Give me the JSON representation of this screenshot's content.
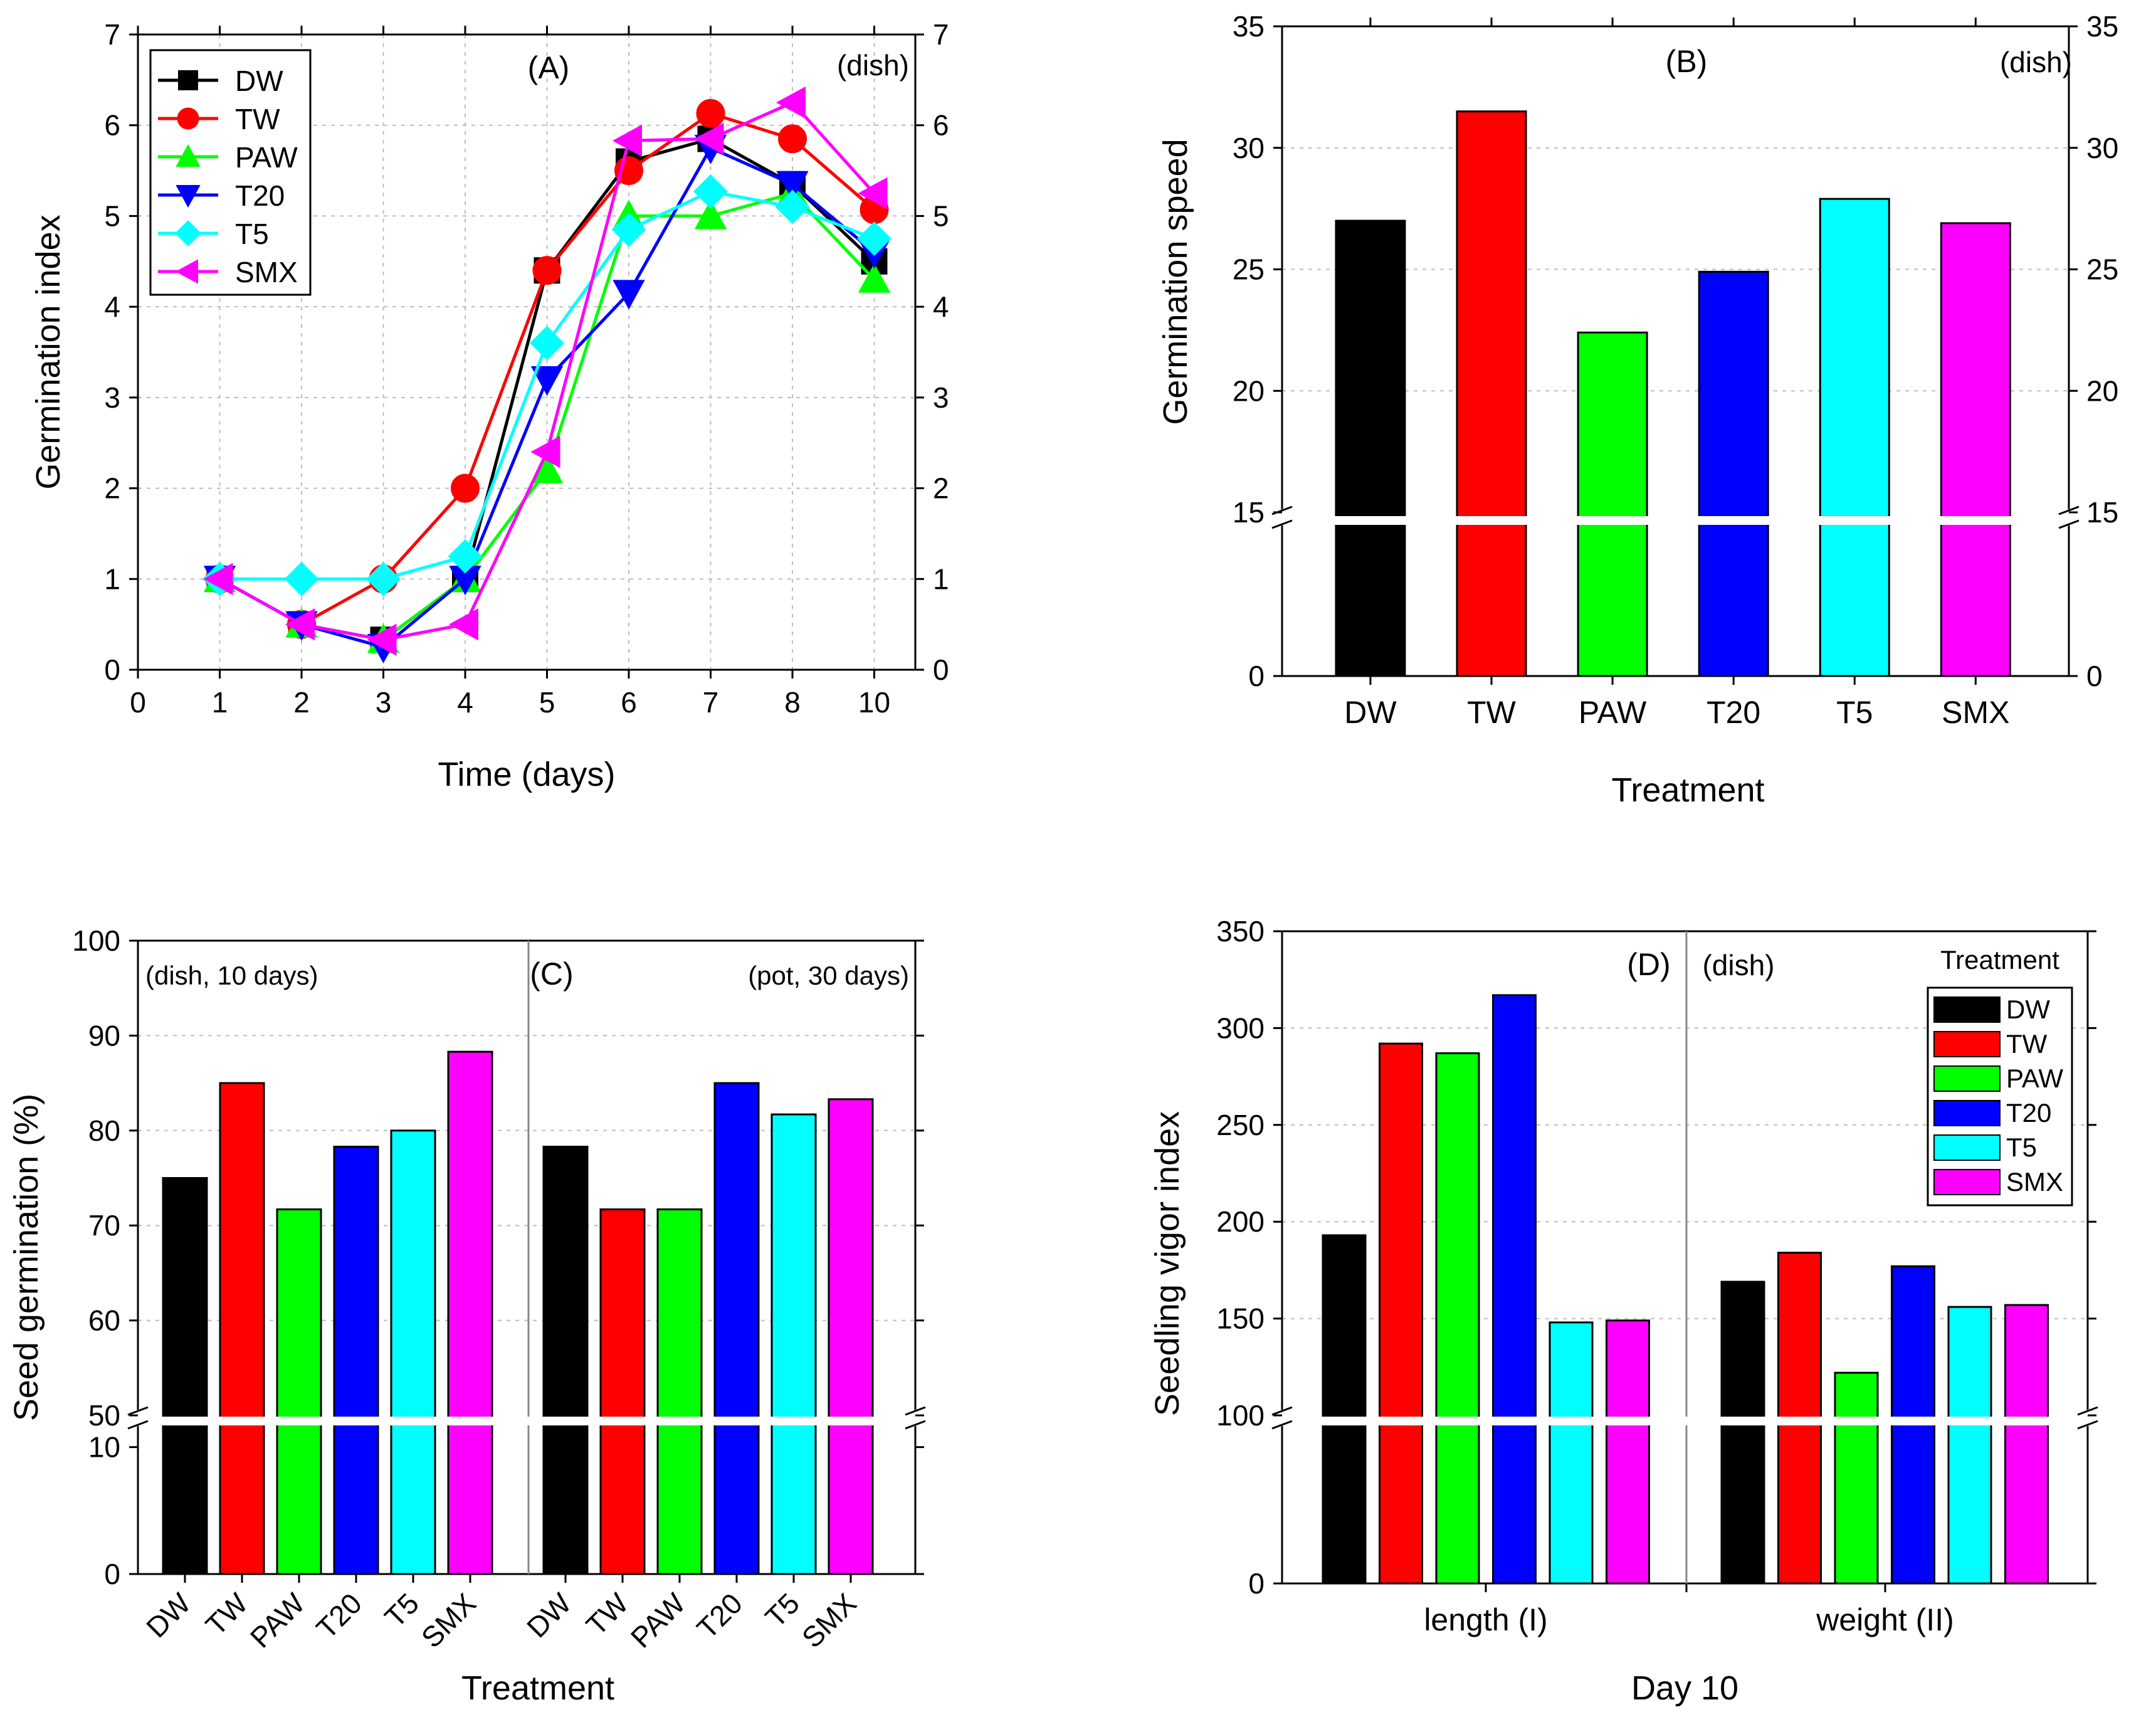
{
  "colors": {
    "DW": "#000000",
    "TW": "#ff0000",
    "PAW": "#00ff00",
    "T20": "#0000ff",
    "T5": "#00ffff",
    "SMX": "#ff00ff"
  },
  "chart_data": [
    {
      "type": "line",
      "panel": "A",
      "label": "(A)",
      "note": "(dish)",
      "xlabel": "Time (days)",
      "ylabel": "Germination index",
      "x_ticks": [
        "0",
        "1",
        "2",
        "3",
        "4",
        "5",
        "6",
        "7",
        "8",
        "10"
      ],
      "ylim": [
        0,
        7
      ],
      "y_ticks": [
        0,
        1,
        2,
        3,
        4,
        5,
        6,
        7
      ],
      "x": [
        "1",
        "2",
        "3",
        "4",
        "5",
        "6",
        "7",
        "8",
        "10"
      ],
      "series": [
        {
          "name": "DW",
          "marker": "square",
          "values": [
            1,
            0.5,
            0.33,
            1,
            4.4,
            5.6,
            5.85,
            5.35,
            4.5
          ]
        },
        {
          "name": "TW",
          "marker": "circle",
          "values": [
            1,
            0.5,
            1,
            2,
            4.4,
            5.5,
            6.13,
            5.85,
            5.07
          ]
        },
        {
          "name": "PAW",
          "marker": "triangle-up",
          "values": [
            1,
            0.5,
            0.33,
            1,
            2.2,
            5.0,
            5.0,
            5.25,
            4.3
          ]
        },
        {
          "name": "T20",
          "marker": "triangle-down",
          "values": [
            1,
            0.5,
            0.25,
            1,
            3.2,
            4.15,
            5.75,
            5.35,
            4.6
          ]
        },
        {
          "name": "T5",
          "marker": "diamond",
          "values": [
            1,
            1,
            1,
            1.25,
            3.6,
            4.85,
            5.27,
            5.1,
            4.75
          ]
        },
        {
          "name": "SMX",
          "marker": "triangle-left",
          "values": [
            1,
            0.5,
            0.33,
            0.5,
            2.4,
            5.83,
            5.85,
            6.25,
            5.25
          ]
        }
      ]
    },
    {
      "type": "bar",
      "panel": "B",
      "label": "(B)",
      "note": "(dish)",
      "xlabel": "Treatment",
      "ylabel": "Germination speed",
      "categories": [
        "DW",
        "TW",
        "PAW",
        "T20",
        "T5",
        "SMX"
      ],
      "values": [
        27.0,
        31.5,
        22.4,
        24.9,
        27.9,
        26.9
      ],
      "y_ticks_upper": [
        15,
        20,
        25,
        30,
        35
      ],
      "y_ticks_lower": [
        0
      ],
      "axis_break": [
        0,
        15
      ]
    },
    {
      "type": "bar",
      "panel": "C",
      "label": "(C)",
      "note_left": "(dish, 10 days)",
      "note_right": "(pot, 30 days)",
      "xlabel": "Treatment",
      "ylabel": "Seed germination (%)",
      "categories": [
        "DW",
        "TW",
        "PAW",
        "T20",
        "T5",
        "SMX"
      ],
      "series": [
        {
          "name": "dish, 10 days",
          "values": [
            75.0,
            85.0,
            71.7,
            78.3,
            80.0,
            88.3
          ]
        },
        {
          "name": "pot, 30 days",
          "values": [
            78.3,
            71.7,
            71.7,
            85.0,
            81.7,
            83.3
          ]
        }
      ],
      "y_ticks_upper": [
        50,
        60,
        70,
        80,
        90,
        100
      ],
      "y_ticks_lower": [
        0,
        10
      ],
      "axis_break": [
        10,
        50
      ]
    },
    {
      "type": "bar",
      "panel": "D",
      "label": "(D)",
      "note": "(dish)",
      "xlabel": "Day 10",
      "ylabel": "Seedling vigor index",
      "groups": [
        "length (I)",
        "weight (II)"
      ],
      "legend_title": "Treatment",
      "series": [
        {
          "name": "DW",
          "values": [
            193,
            169
          ]
        },
        {
          "name": "TW",
          "values": [
            292,
            184
          ]
        },
        {
          "name": "PAW",
          "values": [
            287,
            122
          ]
        },
        {
          "name": "T20",
          "values": [
            317,
            177
          ]
        },
        {
          "name": "T5",
          "values": [
            148,
            156
          ]
        },
        {
          "name": "SMX",
          "values": [
            149,
            157
          ]
        }
      ],
      "y_ticks_upper": [
        100,
        150,
        200,
        250,
        300,
        350
      ],
      "y_ticks_lower": [
        0
      ],
      "axis_break": [
        0,
        100
      ]
    }
  ]
}
